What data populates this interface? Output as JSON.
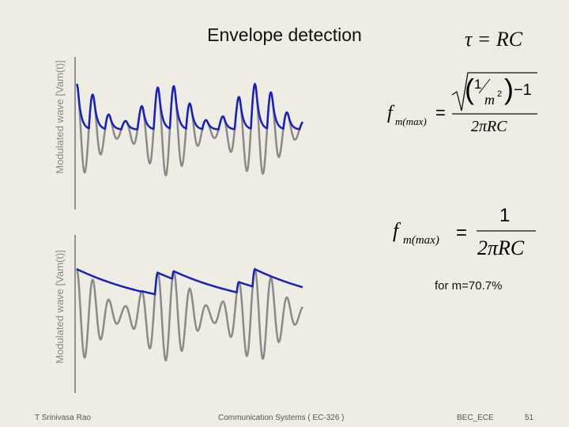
{
  "title": "Envelope detection",
  "plots": [
    {
      "ylabel": "Modulated wave [Vam(t)]"
    },
    {
      "ylabel": "Modulated wave [Vam(t)]"
    }
  ],
  "equations": {
    "tau": "τ = RC",
    "general": {
      "f": "f",
      "sub": "m(max)",
      "eq": "=",
      "one": "1",
      "m": "m",
      "sq": "2",
      "minus_one": "−1",
      "den": "2πRC"
    },
    "special": {
      "f": "f",
      "sub": "m(max)",
      "eq": "=",
      "num": "1",
      "den": "2πRC"
    }
  },
  "note": "for m=70.7%",
  "footer": {
    "author": "T Srinivasa Rao",
    "course": "Communication Systems ( EC-326 )",
    "dept": "BEC_ECE",
    "page": "51"
  }
}
